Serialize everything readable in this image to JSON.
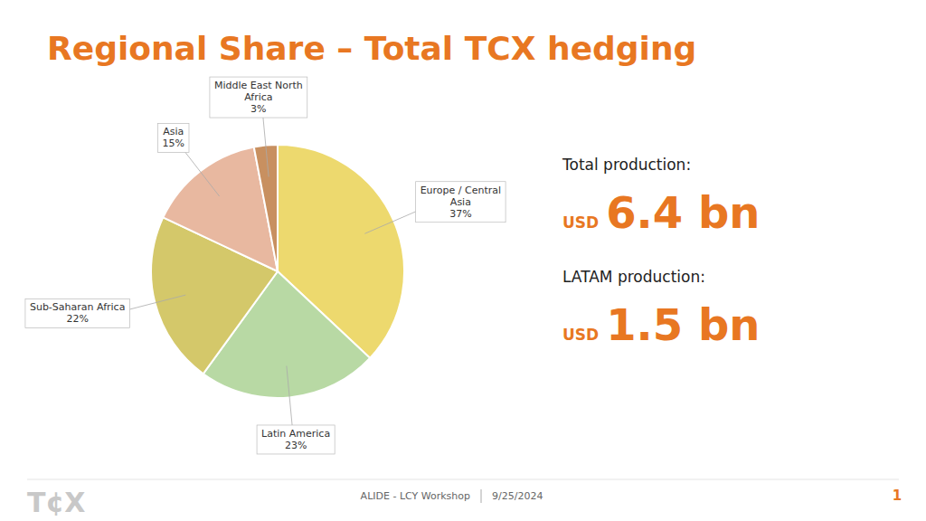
{
  "chart_data": {
    "type": "pie",
    "title": "Regional Share – Total TCX hedging",
    "categories": [
      "Europe / Central\nAsia",
      "Latin America",
      "Sub-Saharan Africa",
      "Asia",
      "Middle East North\nAfrica"
    ],
    "values": [
      37,
      23,
      22,
      15,
      3
    ],
    "value_labels": [
      "37%",
      "23%",
      "22%",
      "15%",
      "3%"
    ],
    "data_labels": true,
    "colors": [
      "#EDD96E",
      "#B8D9A4",
      "#D4C86A",
      "#E8B8A0",
      "#C89060"
    ],
    "annotations": [
      "Total production:",
      "USD",
      "6.4 bn",
      "LATAM production:",
      "USD",
      "1.5 bn",
      "ALIDE - LCY Workshop",
      "9/25/2024",
      "1",
      "T¢X"
    ]
  }
}
